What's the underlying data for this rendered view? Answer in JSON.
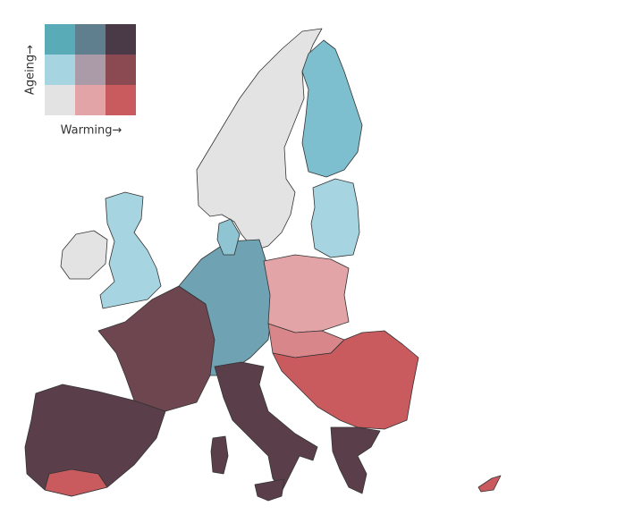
{
  "legend": {
    "y_label": "Ageing→",
    "x_label": "Warming→",
    "colors": [
      [
        "#5aabb8",
        "#5f7f8f",
        "#4a3a47"
      ],
      [
        "#a6d4e0",
        "#ab9ba8",
        "#8b4a52"
      ],
      [
        "#e3e3e3",
        "#e3a4a8",
        "#c95a5e"
      ]
    ]
  }
}
